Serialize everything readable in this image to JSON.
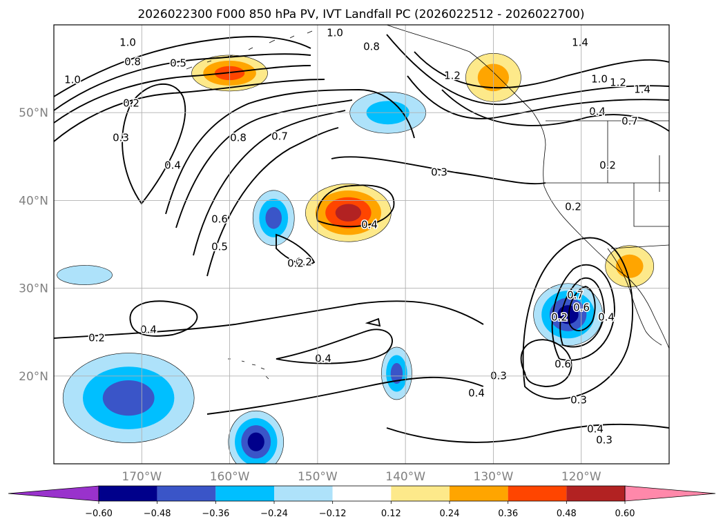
{
  "chart_data": {
    "type": "heatmap",
    "title": "2026022300 F000 850 hPa PV, IVT Landfall PC (2026022512 - 2026022700)",
    "lon_range": [
      -180,
      -110
    ],
    "lat_range": [
      10,
      60
    ],
    "lat_ticks": [
      20,
      30,
      40,
      50
    ],
    "lat_tick_labels": [
      "20°N",
      "30°N",
      "40°N",
      "50°N"
    ],
    "lon_ticks": [
      -170,
      -160,
      -150,
      -140,
      -130,
      -120
    ],
    "lon_tick_labels": [
      "170°W",
      "160°W",
      "150°W",
      "140°W",
      "130°W",
      "120°W"
    ],
    "grid": true,
    "colorbar": {
      "orientation": "horizontal",
      "extend": "both",
      "levels": [
        -0.72,
        -0.6,
        -0.48,
        -0.36,
        -0.24,
        -0.12,
        0.12,
        0.24,
        0.36,
        0.48,
        0.6,
        0.72
      ],
      "colors": [
        "#9932cc",
        "#00008b",
        "#3a55c8",
        "#00bfff",
        "#aee2fa",
        "#ffffff",
        "#fde98a",
        "#ffa500",
        "#ff4500",
        "#b22222",
        "#ff88aa"
      ],
      "tick_values": [
        -0.6,
        -0.48,
        -0.36,
        -0.24,
        -0.12,
        0.12,
        0.24,
        0.36,
        0.48,
        0.6
      ],
      "tick_labels": [
        "−0.60",
        "−0.48",
        "−0.36",
        "−0.24",
        "−0.12",
        "0.12",
        "0.24",
        "0.36",
        "0.48",
        "0.60"
      ]
    },
    "shaded_regions": [
      {
        "name": "ivt-pc-high-40n-146w",
        "lon": -146.5,
        "lat": 38.6,
        "peak": 0.52
      },
      {
        "name": "ivt-pc-high-52n-160w",
        "lon": -160,
        "lat": 54.5,
        "peak": 0.4
      },
      {
        "name": "ivt-pc-high-bc-coast",
        "lon": -130,
        "lat": 54.0,
        "peak": 0.33
      },
      {
        "name": "ivt-pc-high-baja",
        "lon": -114.5,
        "lat": 32.5,
        "peak": 0.3
      },
      {
        "name": "ivt-pc-low-27n-121w",
        "lon": -121.5,
        "lat": 27.0,
        "peak": -0.55
      },
      {
        "name": "ivt-pc-low-17n-170w",
        "lon": -171.5,
        "lat": 17.5,
        "peak": -0.5
      },
      {
        "name": "ivt-pc-low-12n-157w",
        "lon": -157,
        "lat": 12.5,
        "peak": -0.55
      },
      {
        "name": "ivt-pc-low-38n-155w",
        "lon": -155,
        "lat": 38.0,
        "peak": -0.4
      },
      {
        "name": "ivt-pc-low-49n-143w",
        "lon": -142,
        "lat": 50.0,
        "peak": -0.3
      },
      {
        "name": "ivt-pc-low-21n-141w",
        "lon": -141,
        "lat": 20.3,
        "peak": -0.4
      },
      {
        "name": "ivt-pc-low-31n-176w",
        "lon": -176.5,
        "lat": 31.5,
        "peak": -0.25
      }
    ],
    "contour_labels": [
      "1.0",
      "0.8",
      "0.5",
      "1.0",
      "0.2",
      "0.3",
      "0.4",
      "0.8",
      "0.7",
      "0.6",
      "0.5",
      "0.3",
      "0.4",
      "0.2",
      "0.2",
      "0.4",
      "0.4",
      "0.2",
      "0.8",
      "1.0",
      "1.4",
      "1.0",
      "1.2",
      "1.4",
      "0.4",
      "0.7",
      "0.2",
      "0.2",
      "0.2",
      "0.6",
      "0.7",
      "0.4",
      "0.6",
      "0.3",
      "0.3",
      "0.4",
      "0.3",
      "0.4",
      "1.2"
    ]
  }
}
